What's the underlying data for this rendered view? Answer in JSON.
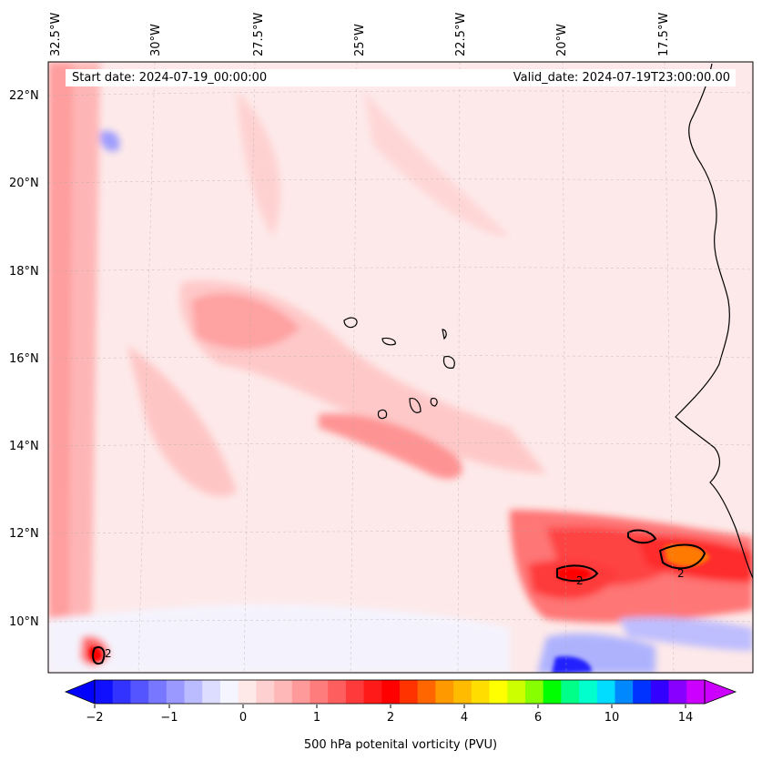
{
  "header": {
    "start_date": "Start date: 2024-07-19_00:00:00",
    "valid_date": "Valid_date: 2024-07-19T23:00:00.00"
  },
  "map": {
    "lon_labels": [
      "32.5°W",
      "30°W",
      "27.5°W",
      "25°W",
      "22.5°W",
      "20°W",
      "17.5°W"
    ],
    "lat_labels": [
      "22°N",
      "20°N",
      "18°N",
      "16°N",
      "14°N",
      "12°N",
      "10°N"
    ],
    "contour_label": "2",
    "background_color": "#fde9e9"
  },
  "colorbar": {
    "title": "500 hPa potenital vorticity (PVU)",
    "tick_labels": [
      "−2",
      "−1",
      "0",
      "1",
      "2",
      "4",
      "6",
      "10",
      "14"
    ],
    "colors": [
      "#1010ff",
      "#3333ff",
      "#5555ff",
      "#7777ff",
      "#9999ff",
      "#bbbbff",
      "#ddddff",
      "#f5f5ff",
      "#ffe8e8",
      "#ffd0d0",
      "#ffb8b8",
      "#ff9a9a",
      "#ff7c7c",
      "#ff5e5e",
      "#ff3a3a",
      "#ff1a1a",
      "#ff0000",
      "#ff3300",
      "#ff6600",
      "#ff9900",
      "#ffbb00",
      "#ffdd00",
      "#ffff00",
      "#ccff00",
      "#88ff00",
      "#00ff00",
      "#00ff88",
      "#00ffcc",
      "#00ddff",
      "#0088ff",
      "#0033ff",
      "#3300ff",
      "#8800ff",
      "#cc00ff"
    ],
    "under_color": "#0000ff",
    "over_color": "#cc00ff"
  }
}
